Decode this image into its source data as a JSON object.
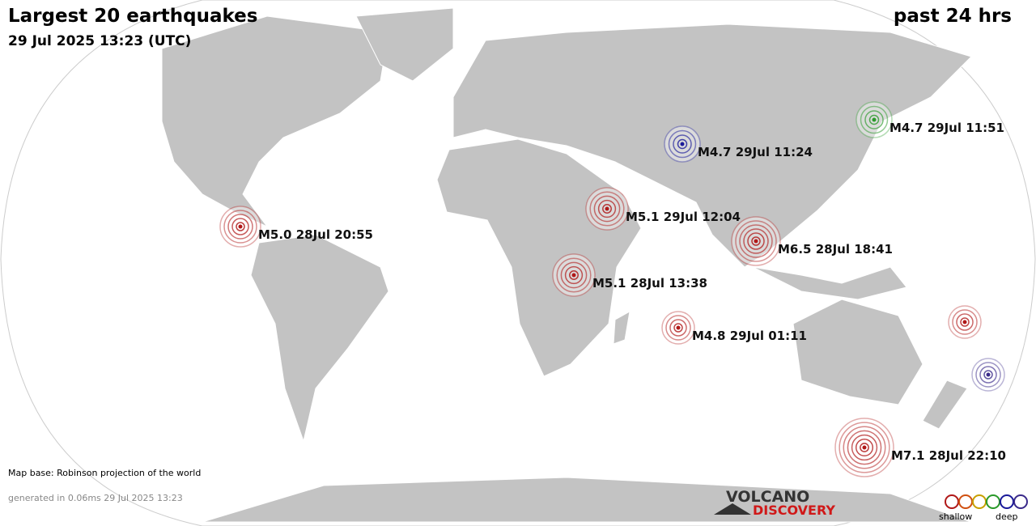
{
  "header": {
    "title": "Largest 20 earthquakes",
    "subtitle": "29 Jul 2025 13:23 (UTC)",
    "period": "past 24 hrs"
  },
  "quakes": [
    {
      "label": "M4.7 29Jul 11:51",
      "color": "#2a9a2a"
    },
    {
      "label": "M4.7 29Jul 11:24",
      "color": "#1a1a9a"
    },
    {
      "label": "M5.1 29Jul 12:04",
      "color": "#b01818"
    },
    {
      "label": "M5.0 28Jul 20:55",
      "color": "#b01818"
    },
    {
      "label": "M6.5 28Jul 18:41",
      "color": "#b01818"
    },
    {
      "label": "M5.1 28Jul 13:38",
      "color": "#b01818"
    },
    {
      "label": "M4.8 29Jul 01:11",
      "color": "#b01818"
    },
    {
      "color": "#b01818"
    },
    {
      "color": "#3a2a8a"
    },
    {
      "label": "M7.1 28Jul 22:10",
      "color": "#b01818"
    }
  ],
  "footer": {
    "map_base": "Map base: Robinson projection of the world",
    "generated": "generated in 0.06ms 29 Jul 2025 13:23",
    "logo_top": "VOLCANO",
    "logo_bottom": "DISCOVERY"
  },
  "legend": {
    "shallow": "shallow",
    "deep": "deep"
  }
}
